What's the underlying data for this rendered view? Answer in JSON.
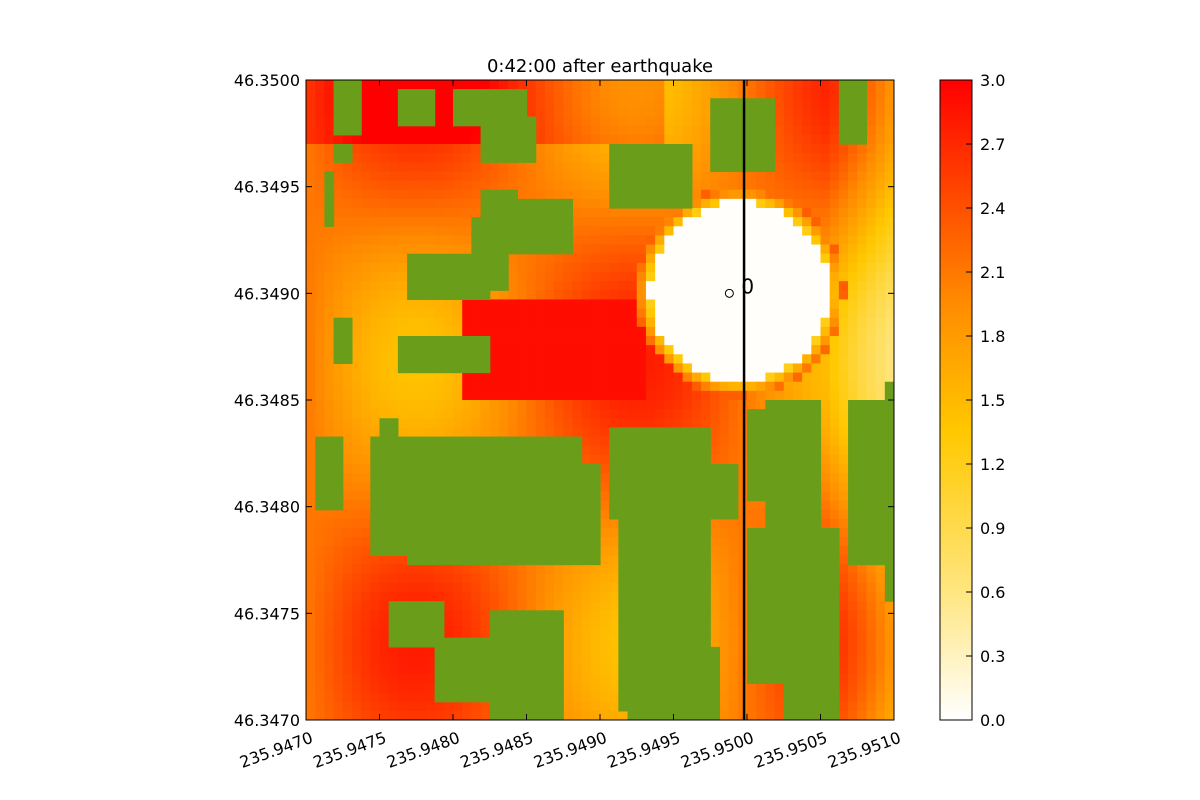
{
  "chart_data": {
    "type": "heatmap",
    "title": "0:42:00 after earthquake",
    "xlabel": "",
    "ylabel": "",
    "xlim": [
      235.947,
      235.951
    ],
    "ylim": [
      46.347,
      46.35
    ],
    "x_ticks": [
      "235.9470",
      "235.9475",
      "235.9480",
      "235.9485",
      "235.9490",
      "235.9495",
      "235.9500",
      "235.9505",
      "235.9510"
    ],
    "y_ticks": [
      "46.3470",
      "46.3475",
      "46.3480",
      "46.3485",
      "46.3490",
      "46.3495",
      "46.3500"
    ],
    "colorbar": {
      "min": 0.0,
      "max": 3.0,
      "ticks": [
        "0.0",
        "0.3",
        "0.6",
        "0.9",
        "1.2",
        "1.5",
        "1.8",
        "2.1",
        "2.4",
        "2.7",
        "3.0"
      ],
      "colors": [
        "#ffffff",
        "#ffe680",
        "#ffc800",
        "#ff8c00",
        "#ff0000"
      ]
    },
    "land_color": "#6a9e1a",
    "transect_x": 235.94998,
    "gauge": {
      "x": 235.94988,
      "y": 46.349,
      "label": "0"
    }
  }
}
